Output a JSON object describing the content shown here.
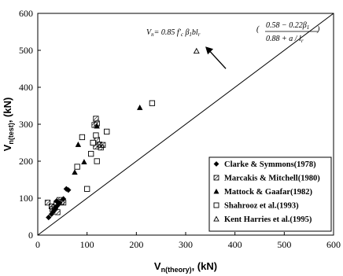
{
  "chart_data": {
    "type": "scatter",
    "xlabel": {
      "main": "V",
      "sub": "n(theory)",
      "unit": ", (kN)"
    },
    "ylabel": {
      "main": "V",
      "sub": "n(test)",
      "unit": ", (kN)"
    },
    "xlim": [
      0,
      600
    ],
    "ylim": [
      0,
      600
    ],
    "xticks": [
      "0",
      "100",
      "200",
      "300",
      "400",
      "500",
      "600"
    ],
    "yticks": [
      "0",
      "100",
      "200",
      "300",
      "400",
      "500",
      "600"
    ],
    "grid": false,
    "legend_position": "bottom-right",
    "reference_line": {
      "type": "y=x",
      "from": [
        0,
        0
      ],
      "to": [
        600,
        600
      ]
    },
    "annotation": {
      "lhs": "V",
      "lhs_sub": "n",
      "rhs_prefix": "= 0.85 f′",
      "rhs_prefix_sub": "c",
      "rhs_beta": " β",
      "rhs_beta_sub": "1",
      "rhs_bl": "bl",
      "rhs_bl_sub": "r",
      "numerator": "0.58 − 0.22β",
      "numerator_sub": "1",
      "denominator": "0.88 + a / l",
      "denominator_sub": "r",
      "points_to": [
        340,
        510
      ]
    },
    "series": [
      {
        "name": "Clarke & Symmons(1978)",
        "marker": "diamond",
        "points": [
          [
            22,
            48
          ],
          [
            28,
            57
          ],
          [
            32,
            65
          ],
          [
            36,
            72
          ],
          [
            40,
            80
          ],
          [
            44,
            87
          ],
          [
            38,
            92
          ],
          [
            52,
            98
          ],
          [
            58,
            125
          ],
          [
            62,
            122
          ]
        ]
      },
      {
        "name": "Marcakis & Mitchell(1980)",
        "marker": "hatched-square",
        "points": [
          [
            20,
            88
          ],
          [
            28,
            78
          ],
          [
            30,
            70
          ],
          [
            34,
            75
          ],
          [
            38,
            85
          ],
          [
            40,
            62
          ],
          [
            44,
            95
          ],
          [
            48,
            90
          ],
          [
            52,
            88
          ],
          [
            118,
            240
          ],
          [
            120,
            258
          ],
          [
            125,
            245
          ],
          [
            128,
            237
          ],
          [
            132,
            244
          ],
          [
            115,
            298
          ],
          [
            118,
            315
          ],
          [
            120,
            302
          ]
        ]
      },
      {
        "name": "Mattock & Gaafar(1982)",
        "marker": "filled-triangle",
        "points": [
          [
            75,
            170
          ],
          [
            82,
            245
          ],
          [
            94,
            198
          ],
          [
            120,
            295
          ],
          [
            207,
            345
          ]
        ]
      },
      {
        "name": "Shahrooz et al.(1993)",
        "marker": "open-square",
        "points": [
          [
            80,
            185
          ],
          [
            90,
            265
          ],
          [
            100,
            125
          ],
          [
            108,
            220
          ],
          [
            112,
            250
          ],
          [
            118,
            270
          ],
          [
            120,
            200
          ],
          [
            140,
            280
          ],
          [
            232,
            357
          ]
        ]
      },
      {
        "name": "Kent Harries et al.(1995)",
        "marker": "open-triangle",
        "points": [
          [
            322,
            498
          ]
        ]
      }
    ]
  }
}
